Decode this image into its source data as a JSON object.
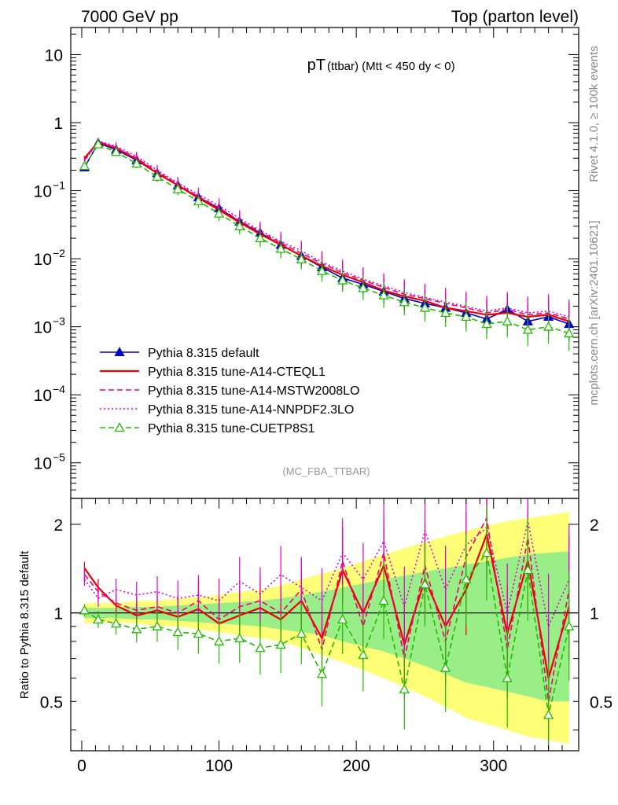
{
  "header": {
    "left": "7000 GeV pp",
    "right": "Top (parton level)"
  },
  "side_labels": {
    "rivet": "Rivet 4.1.0, ≥ 100k events",
    "mcplots": "mcplots.cern.ch [arXiv:2401.10621]"
  },
  "colors": {
    "default": "#0000cc",
    "cteql1": "#ee0000",
    "mstw": "#ee0077",
    "nnpdf": "#dd00dd",
    "cuetp8s1": "#22bb00",
    "band_yellow": "#ffff77",
    "band_green": "#99ee88"
  },
  "chart_data": [
    {
      "panel": "main",
      "type": "line",
      "title_main": "pT",
      "title_rest": " (ttbar) (Mtt < 450 dy < 0)",
      "analysis_label": "(MC_FBA_TTBAR)",
      "yscale": "log",
      "ylim": [
        3e-06,
        25
      ],
      "xlim": [
        -8,
        362
      ],
      "y_ticks": [
        {
          "value": 10,
          "label": "10"
        },
        {
          "value": 1,
          "label": "1"
        },
        {
          "value": 0.1,
          "label": "10",
          "exp": "−1"
        },
        {
          "value": 0.01,
          "label": "10",
          "exp": "−2"
        },
        {
          "value": 0.001,
          "label": "10",
          "exp": "−3"
        },
        {
          "value": 0.0001,
          "label": "10",
          "exp": "−4"
        },
        {
          "value": 1e-05,
          "label": "10",
          "exp": "−5"
        }
      ],
      "legend": [
        {
          "key": "default",
          "label": "Pythia 8.315 default",
          "style": "solid",
          "marker": "triangle-filled"
        },
        {
          "key": "cteql1",
          "label": "Pythia 8.315 tune-A14-CTEQL1",
          "style": "solid",
          "marker": "none"
        },
        {
          "key": "mstw",
          "label": "Pythia 8.315 tune-A14-MSTW2008LO",
          "style": "dashed",
          "marker": "none"
        },
        {
          "key": "nnpdf",
          "label": "Pythia 8.315 tune-A14-NNPDF2.3LO",
          "style": "dotted",
          "marker": "none"
        },
        {
          "key": "cuetp8s1",
          "label": "Pythia 8.315 tune-CUETP8S1",
          "style": "dashed",
          "marker": "triangle-open"
        }
      ],
      "x": [
        2,
        12,
        25,
        40,
        55,
        70,
        85,
        100,
        115,
        130,
        145,
        160,
        175,
        190,
        205,
        220,
        235,
        250,
        265,
        280,
        295,
        310,
        325,
        340,
        355
      ],
      "series": [
        {
          "key": "default",
          "name": "Pythia 8.315 default",
          "values": [
            0.22,
            0.5,
            0.4,
            0.28,
            0.18,
            0.12,
            0.08,
            0.055,
            0.035,
            0.024,
            0.016,
            0.011,
            0.0075,
            0.0052,
            0.0042,
            0.0033,
            0.0026,
            0.0022,
            0.0019,
            0.0016,
            0.0013,
            0.0018,
            0.0012,
            0.0014,
            0.0011
          ]
        },
        {
          "key": "cteql1",
          "name": "Pythia 8.315 tune-A14-CTEQL1",
          "values": [
            0.3,
            0.52,
            0.42,
            0.29,
            0.18,
            0.12,
            0.078,
            0.052,
            0.034,
            0.023,
            0.016,
            0.011,
            0.0078,
            0.0058,
            0.0045,
            0.0034,
            0.0028,
            0.0024,
            0.0019,
            0.0017,
            0.0015,
            0.0016,
            0.0014,
            0.0015,
            0.0012
          ]
        },
        {
          "key": "mstw",
          "name": "Pythia 8.315 tune-A14-MSTW2008LO",
          "values": [
            0.28,
            0.53,
            0.43,
            0.3,
            0.19,
            0.125,
            0.082,
            0.056,
            0.036,
            0.025,
            0.017,
            0.012,
            0.0085,
            0.0062,
            0.0048,
            0.0038,
            0.003,
            0.0026,
            0.0022,
            0.0019,
            0.0016,
            0.0018,
            0.0015,
            0.0016,
            0.0013
          ]
        },
        {
          "key": "nnpdf",
          "name": "Pythia 8.315 tune-A14-NNPDF2.3LO",
          "values": [
            0.27,
            0.54,
            0.45,
            0.32,
            0.2,
            0.13,
            0.088,
            0.06,
            0.039,
            0.026,
            0.018,
            0.013,
            0.009,
            0.0066,
            0.005,
            0.004,
            0.0032,
            0.0027,
            0.0023,
            0.002,
            0.0017,
            0.0019,
            0.0016,
            0.0017,
            0.0014
          ]
        },
        {
          "key": "cuetp8s1",
          "name": "Pythia 8.315 tune-CUETP8S1",
          "values": [
            0.23,
            0.48,
            0.37,
            0.25,
            0.16,
            0.105,
            0.07,
            0.046,
            0.03,
            0.02,
            0.014,
            0.0098,
            0.0066,
            0.0048,
            0.0037,
            0.0029,
            0.0023,
            0.0019,
            0.0016,
            0.0014,
            0.0011,
            0.0012,
            0.0009,
            0.001,
            0.0008
          ]
        }
      ]
    },
    {
      "panel": "ratio",
      "type": "line",
      "ylabel": "Ratio to Pythia 8.315 default",
      "xlabel": "",
      "yscale": "log",
      "ylim": [
        0.34,
        2.45
      ],
      "xlim": [
        -8,
        362
      ],
      "y_ticks": [
        {
          "value": 2,
          "label": "2"
        },
        {
          "value": 1,
          "label": "1"
        },
        {
          "value": 0.5,
          "label": "0.5"
        }
      ],
      "x_ticks": [
        {
          "value": 0,
          "label": "0"
        },
        {
          "value": 100,
          "label": "100"
        },
        {
          "value": 200,
          "label": "200"
        },
        {
          "value": 300,
          "label": "300"
        }
      ],
      "x": [
        2,
        12,
        25,
        40,
        55,
        70,
        85,
        100,
        115,
        130,
        145,
        160,
        175,
        190,
        205,
        220,
        235,
        250,
        265,
        280,
        295,
        310,
        325,
        340,
        355
      ],
      "band_yellow": {
        "lower": [
          0.92,
          0.93,
          0.93,
          0.92,
          0.9,
          0.9,
          0.88,
          0.86,
          0.84,
          0.82,
          0.8,
          0.76,
          0.72,
          0.68,
          0.64,
          0.6,
          0.56,
          0.52,
          0.48,
          0.44,
          0.42,
          0.4,
          0.38,
          0.37,
          0.36
        ],
        "upper": [
          1.08,
          1.08,
          1.08,
          1.1,
          1.1,
          1.12,
          1.13,
          1.15,
          1.18,
          1.2,
          1.24,
          1.3,
          1.36,
          1.42,
          1.5,
          1.58,
          1.66,
          1.74,
          1.82,
          1.9,
          1.98,
          2.05,
          2.1,
          2.15,
          2.2
        ]
      },
      "band_green": {
        "lower": [
          0.96,
          0.96,
          0.96,
          0.95,
          0.95,
          0.94,
          0.93,
          0.92,
          0.91,
          0.9,
          0.88,
          0.86,
          0.84,
          0.8,
          0.77,
          0.74,
          0.7,
          0.66,
          0.62,
          0.58,
          0.56,
          0.54,
          0.52,
          0.5,
          0.5
        ],
        "upper": [
          1.04,
          1.04,
          1.04,
          1.05,
          1.05,
          1.06,
          1.07,
          1.08,
          1.09,
          1.1,
          1.12,
          1.15,
          1.18,
          1.22,
          1.26,
          1.3,
          1.34,
          1.38,
          1.42,
          1.46,
          1.5,
          1.54,
          1.58,
          1.6,
          1.62
        ]
      },
      "series": [
        {
          "key": "default",
          "name": "Pythia 8.315 default",
          "values": [
            1,
            1,
            1,
            1,
            1,
            1,
            1,
            1,
            1,
            1,
            1,
            1,
            1,
            1,
            1,
            1,
            1,
            1,
            1,
            1,
            1,
            1,
            1,
            1,
            1
          ]
        },
        {
          "key": "cteql1",
          "name": "Pythia 8.315 tune-A14-CTEQL1",
          "values": [
            1.42,
            1.22,
            1.06,
            0.98,
            1.02,
            0.97,
            1.03,
            0.92,
            0.98,
            1.04,
            0.95,
            1.1,
            0.82,
            1.4,
            1.0,
            1.45,
            0.78,
            1.3,
            0.9,
            1.2,
            1.85,
            0.85,
            1.5,
            0.6,
            1.05
          ]
        },
        {
          "key": "mstw",
          "name": "Pythia 8.315 tune-A14-MSTW2008LO",
          "values": [
            1.35,
            1.18,
            1.08,
            1.02,
            1.05,
            1.0,
            1.1,
            0.95,
            1.05,
            1.1,
            1.0,
            1.2,
            0.75,
            1.5,
            0.9,
            1.6,
            0.7,
            1.45,
            0.8,
            1.55,
            2.1,
            0.75,
            1.8,
            0.5,
            1.2
          ]
        },
        {
          "key": "nnpdf",
          "name": "Pythia 8.315 tune-A14-NNPDF2.3LO",
          "values": [
            1.3,
            1.12,
            1.2,
            1.15,
            1.18,
            1.12,
            1.15,
            1.1,
            1.28,
            1.16,
            1.35,
            1.22,
            1.1,
            1.6,
            1.3,
            1.75,
            1.05,
            1.9,
            1.2,
            1.7,
            1.95,
            1.0,
            2.05,
            0.9,
            1.3
          ]
        },
        {
          "key": "cuetp8s1",
          "name": "Pythia 8.315 tune-CUETP8S1",
          "values": [
            1.02,
            0.95,
            0.92,
            0.88,
            0.9,
            0.86,
            0.85,
            0.8,
            0.82,
            0.76,
            0.78,
            0.85,
            0.62,
            0.95,
            0.72,
            1.1,
            0.55,
            1.25,
            0.65,
            1.3,
            1.6,
            0.6,
            1.4,
            0.45,
            0.9
          ]
        }
      ]
    }
  ]
}
